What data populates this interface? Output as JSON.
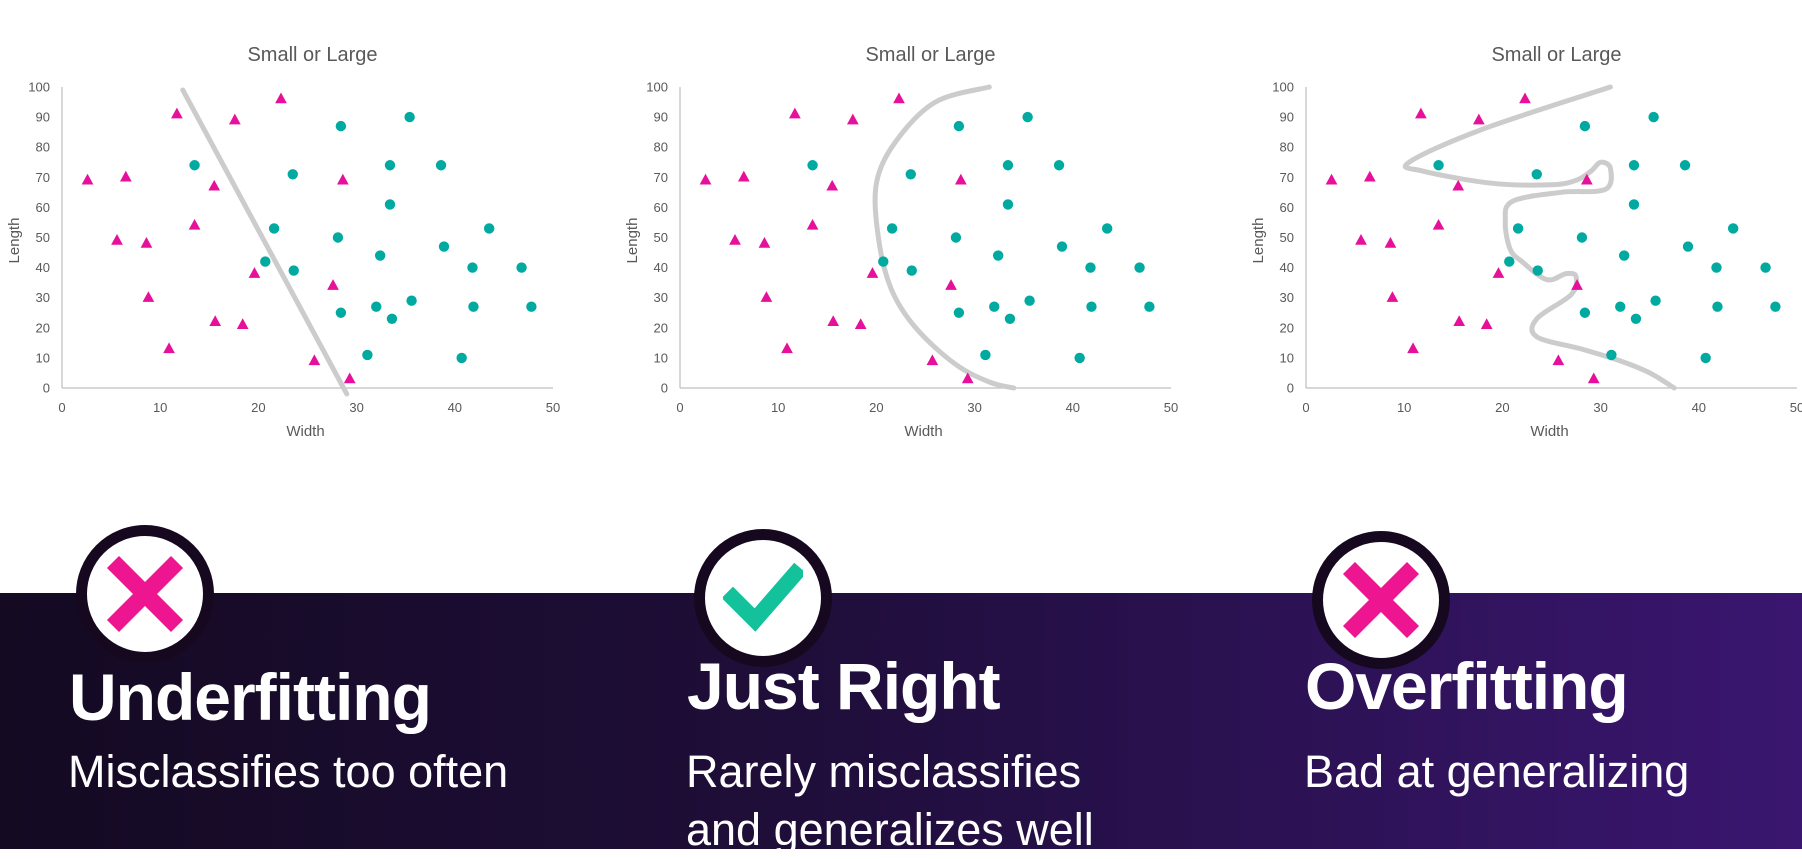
{
  "chart_data": [
    {
      "type": "scatter",
      "title": "Small or Large",
      "xlabel": "Width",
      "ylabel": "Length",
      "xlim": [
        0,
        50
      ],
      "ylim": [
        0,
        100
      ],
      "xticks": [
        0,
        10,
        20,
        30,
        40,
        50
      ],
      "yticks": [
        0,
        10,
        20,
        30,
        40,
        50,
        60,
        70,
        80,
        90,
        100
      ],
      "grid": false,
      "series": [
        {
          "marker": "triangle",
          "color": "#e6109b",
          "points": [
            [
              2.6,
              69
            ],
            [
              6.5,
              70
            ],
            [
              5.6,
              49
            ],
            [
              8.6,
              48
            ],
            [
              8.8,
              30
            ],
            [
              10.9,
              13
            ],
            [
              11.7,
              91
            ],
            [
              13.5,
              54
            ],
            [
              15.5,
              67
            ],
            [
              15.6,
              22
            ],
            [
              17.6,
              89
            ],
            [
              18.4,
              21
            ],
            [
              19.6,
              38
            ],
            [
              22.3,
              96
            ],
            [
              25.7,
              9
            ],
            [
              27.6,
              34
            ],
            [
              28.6,
              69
            ],
            [
              29.3,
              3
            ]
          ]
        },
        {
          "marker": "circle",
          "color": "#00aaa0",
          "points": [
            [
              13.5,
              74
            ],
            [
              20.7,
              42
            ],
            [
              21.6,
              53
            ],
            [
              23.5,
              71
            ],
            [
              23.6,
              39
            ],
            [
              28.1,
              50
            ],
            [
              28.4,
              87
            ],
            [
              28.4,
              25
            ],
            [
              31.1,
              11
            ],
            [
              32.0,
              27
            ],
            [
              32.4,
              44
            ],
            [
              33.4,
              74
            ],
            [
              33.4,
              61
            ],
            [
              33.6,
              23
            ],
            [
              35.4,
              90
            ],
            [
              35.6,
              29
            ],
            [
              38.6,
              74
            ],
            [
              38.9,
              47
            ],
            [
              40.7,
              10
            ],
            [
              41.8,
              40
            ],
            [
              41.9,
              27
            ],
            [
              43.5,
              53
            ],
            [
              46.8,
              40
            ],
            [
              47.8,
              27
            ]
          ]
        }
      ],
      "boundary": [
        [
          12.3,
          99
        ],
        [
          29,
          -2
        ]
      ]
    },
    {
      "type": "scatter",
      "title": "Small or Large",
      "xlabel": "Width",
      "ylabel": "Length",
      "xlim": [
        0,
        50
      ],
      "ylim": [
        0,
        100
      ],
      "xticks": [
        0,
        10,
        20,
        30,
        40,
        50
      ],
      "yticks": [
        0,
        10,
        20,
        30,
        40,
        50,
        60,
        70,
        80,
        90,
        100
      ],
      "grid": false,
      "series": [
        {
          "marker": "triangle",
          "color": "#e6109b",
          "points": [
            [
              2.6,
              69
            ],
            [
              6.5,
              70
            ],
            [
              5.6,
              49
            ],
            [
              8.6,
              48
            ],
            [
              8.8,
              30
            ],
            [
              10.9,
              13
            ],
            [
              11.7,
              91
            ],
            [
              13.5,
              54
            ],
            [
              15.5,
              67
            ],
            [
              15.6,
              22
            ],
            [
              17.6,
              89
            ],
            [
              18.4,
              21
            ],
            [
              19.6,
              38
            ],
            [
              22.3,
              96
            ],
            [
              25.7,
              9
            ],
            [
              27.6,
              34
            ],
            [
              28.6,
              69
            ],
            [
              29.3,
              3
            ]
          ]
        },
        {
          "marker": "circle",
          "color": "#00aaa0",
          "points": [
            [
              13.5,
              74
            ],
            [
              20.7,
              42
            ],
            [
              21.6,
              53
            ],
            [
              23.5,
              71
            ],
            [
              23.6,
              39
            ],
            [
              28.1,
              50
            ],
            [
              28.4,
              87
            ],
            [
              28.4,
              25
            ],
            [
              31.1,
              11
            ],
            [
              32.0,
              27
            ],
            [
              32.4,
              44
            ],
            [
              33.4,
              74
            ],
            [
              33.4,
              61
            ],
            [
              33.6,
              23
            ],
            [
              35.4,
              90
            ],
            [
              35.6,
              29
            ],
            [
              38.6,
              74
            ],
            [
              38.9,
              47
            ],
            [
              40.7,
              10
            ],
            [
              41.8,
              40
            ],
            [
              41.9,
              27
            ],
            [
              43.5,
              53
            ],
            [
              46.8,
              40
            ],
            [
              47.8,
              27
            ]
          ]
        }
      ],
      "boundary": [
        [
          31.5,
          100
        ],
        [
          26,
          95
        ],
        [
          22,
          82
        ],
        [
          20,
          68
        ],
        [
          20.2,
          50
        ],
        [
          21.5,
          33
        ],
        [
          24,
          20
        ],
        [
          28,
          8
        ],
        [
          31.5,
          2
        ],
        [
          34,
          0
        ]
      ]
    },
    {
      "type": "scatter",
      "title": "Small or Large",
      "xlabel": "Width",
      "ylabel": "Length",
      "xlim": [
        0,
        50
      ],
      "ylim": [
        0,
        100
      ],
      "xticks": [
        0,
        10,
        20,
        30,
        40,
        50
      ],
      "yticks": [
        0,
        10,
        20,
        30,
        40,
        50,
        60,
        70,
        80,
        90,
        100
      ],
      "grid": false,
      "series": [
        {
          "marker": "triangle",
          "color": "#e6109b",
          "points": [
            [
              2.6,
              69
            ],
            [
              6.5,
              70
            ],
            [
              5.6,
              49
            ],
            [
              8.6,
              48
            ],
            [
              8.8,
              30
            ],
            [
              10.9,
              13
            ],
            [
              11.7,
              91
            ],
            [
              13.5,
              54
            ],
            [
              15.5,
              67
            ],
            [
              15.6,
              22
            ],
            [
              17.6,
              89
            ],
            [
              18.4,
              21
            ],
            [
              19.6,
              38
            ],
            [
              22.3,
              96
            ],
            [
              25.7,
              9
            ],
            [
              27.6,
              34
            ],
            [
              28.6,
              69
            ],
            [
              29.3,
              3
            ]
          ]
        },
        {
          "marker": "circle",
          "color": "#00aaa0",
          "points": [
            [
              13.5,
              74
            ],
            [
              20.7,
              42
            ],
            [
              21.6,
              53
            ],
            [
              23.5,
              71
            ],
            [
              23.6,
              39
            ],
            [
              28.1,
              50
            ],
            [
              28.4,
              87
            ],
            [
              28.4,
              25
            ],
            [
              31.1,
              11
            ],
            [
              32.0,
              27
            ],
            [
              32.4,
              44
            ],
            [
              33.4,
              74
            ],
            [
              33.4,
              61
            ],
            [
              33.6,
              23
            ],
            [
              35.4,
              90
            ],
            [
              35.6,
              29
            ],
            [
              38.6,
              74
            ],
            [
              38.9,
              47
            ],
            [
              40.7,
              10
            ],
            [
              41.8,
              40
            ],
            [
              41.9,
              27
            ],
            [
              43.5,
              53
            ],
            [
              46.8,
              40
            ],
            [
              47.8,
              27
            ]
          ]
        }
      ],
      "boundary": [
        [
          31,
          100
        ],
        [
          18,
          86
        ],
        [
          10.5,
          75
        ],
        [
          12,
          72
        ],
        [
          19,
          68
        ],
        [
          25,
          67.5
        ],
        [
          27.5,
          69
        ],
        [
          29,
          72
        ],
        [
          30,
          75
        ],
        [
          31,
          73
        ],
        [
          30.5,
          66
        ],
        [
          26,
          65
        ],
        [
          21,
          62
        ],
        [
          20.3,
          55
        ],
        [
          20.8,
          46
        ],
        [
          22,
          42
        ],
        [
          24.5,
          36
        ],
        [
          26.5,
          38
        ],
        [
          27.5,
          37
        ],
        [
          27,
          31
        ],
        [
          23.5,
          23
        ],
        [
          23.5,
          17
        ],
        [
          28,
          13
        ],
        [
          32,
          9
        ],
        [
          35,
          5
        ],
        [
          37.5,
          0
        ]
      ]
    }
  ],
  "cards": [
    {
      "status": "bad",
      "icon": "x-icon",
      "title": "Underfitting",
      "desc": [
        "Misclassifies too often"
      ]
    },
    {
      "status": "good",
      "icon": "check-icon",
      "title": "Just Right",
      "desc": [
        "Rarely misclassifies",
        "and generalizes well"
      ]
    },
    {
      "status": "bad",
      "icon": "x-icon",
      "title": "Overfitting",
      "desc": [
        "Bad at generalizing"
      ]
    }
  ],
  "colors": {
    "triangle": "#e6109b",
    "circle": "#00aaa0",
    "boundary": "#cccccc",
    "axis": "#bfbfbf",
    "text": "#595959",
    "bad_icon": "#ee1590",
    "good_icon": "#13c29a",
    "band_start": "#140a22",
    "band_end": "#3a1670"
  }
}
